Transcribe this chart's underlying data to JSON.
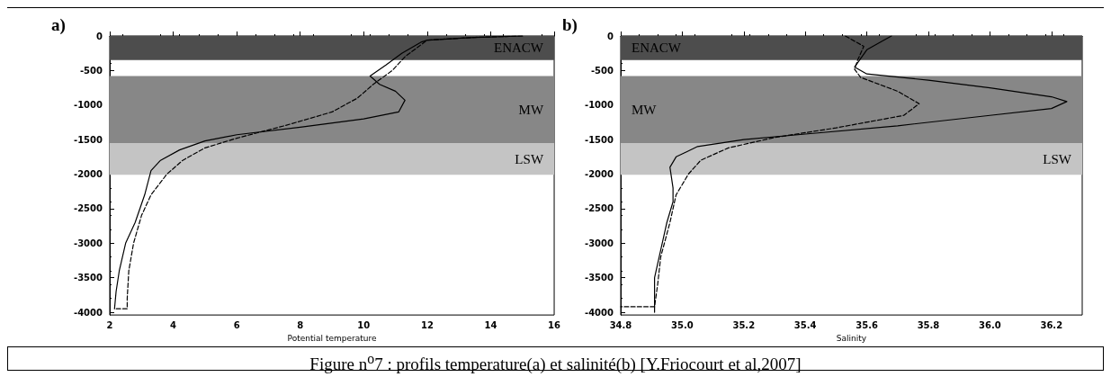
{
  "chart_data": [
    {
      "type": "line",
      "title": "a)",
      "xlabel": "Potential temperature",
      "xlim": [
        2,
        16
      ],
      "xticks": [
        2,
        4,
        6,
        8,
        10,
        12,
        14,
        16
      ],
      "ylim": [
        -4040,
        0
      ],
      "yticks": [
        -4000,
        -3500,
        -3000,
        -2500,
        -2000,
        -1500,
        -1000,
        -500,
        0
      ],
      "marker": "none",
      "bands": [
        {
          "axis": "y",
          "from": 0,
          "to": -350,
          "label": "ENACW",
          "color": "#4d4d4d"
        },
        {
          "axis": "y",
          "from": -580,
          "to": -1550,
          "label": "MW",
          "color": "#878787"
        },
        {
          "axis": "y",
          "from": -1550,
          "to": -2010,
          "label": "LSW",
          "color": "#c4c4c4"
        }
      ],
      "series": [
        {
          "color": "#000000",
          "line_style": "solid",
          "x": [
            15.0,
            13.5,
            12.0,
            11.8,
            11.2,
            10.7,
            10.2,
            10.5,
            11.0,
            11.3,
            11.1,
            10.0,
            8.0,
            6.0,
            5.0,
            4.2,
            3.6,
            3.3,
            3.1,
            2.8,
            2.5,
            2.3,
            2.2,
            2.15
          ],
          "values": [
            0,
            -20,
            -60,
            -90,
            -250,
            -420,
            -580,
            -700,
            -800,
            -930,
            -1100,
            -1200,
            -1320,
            -1430,
            -1520,
            -1650,
            -1800,
            -1950,
            -2300,
            -2700,
            -3000,
            -3400,
            -3700,
            -3950
          ]
        },
        {
          "color": "#000000",
          "line_style": "dashed",
          "x": [
            15.0,
            13.5,
            12.0,
            11.3,
            10.9,
            10.3,
            9.8,
            9.0,
            7.5,
            6.0,
            5.0,
            4.3,
            3.8,
            3.3,
            3.0,
            2.75,
            2.6,
            2.55,
            2.55,
            2.2
          ],
          "values": [
            0,
            -20,
            -60,
            -300,
            -500,
            -700,
            -900,
            -1100,
            -1300,
            -1480,
            -1620,
            -1800,
            -2000,
            -2300,
            -2600,
            -3000,
            -3400,
            -3800,
            -3950,
            -3950
          ]
        }
      ],
      "annotations": [
        "Figure n$^{o}$7 : profils temperature(a) et salinité(b) [Y.Friocourt et al,2007]"
      ]
    },
    {
      "type": "line",
      "title": "b)",
      "xlabel": "Salinity",
      "xlim": [
        34.8,
        36.3
      ],
      "xticks": [
        {
          "value": 34.8,
          "label": "34.8"
        },
        {
          "value": 35.0,
          "label": "35.0"
        },
        {
          "value": 35.2,
          "label": "35.2"
        },
        {
          "value": 35.4,
          "label": "35.4"
        },
        {
          "value": 35.6,
          "label": "35.6"
        },
        {
          "value": 35.8,
          "label": "35.8"
        },
        {
          "value": 36.0,
          "label": "36.0"
        },
        {
          "value": 36.2,
          "label": "36.2"
        }
      ],
      "ylim": [
        -4040,
        0
      ],
      "yticks": [
        -4000,
        -3500,
        -3000,
        -2500,
        -2000,
        -1500,
        -1000,
        -500,
        0
      ],
      "marker": "none",
      "bands": [
        {
          "axis": "y",
          "from": 0,
          "to": -350,
          "label": "ENACW",
          "color": "#4d4d4d"
        },
        {
          "axis": "y",
          "from": -580,
          "to": -1550,
          "label": "MW",
          "color": "#878787"
        },
        {
          "axis": "y",
          "from": -1550,
          "to": -2010,
          "label": "LSW",
          "color": "#c4c4c4"
        }
      ],
      "series": [
        {
          "color": "#000000",
          "line_style": "solid",
          "x": [
            35.68,
            35.66,
            35.6,
            35.56,
            35.6,
            35.8,
            36.0,
            36.2,
            36.25,
            36.2,
            36.0,
            35.7,
            35.4,
            35.2,
            35.05,
            34.98,
            34.96,
            34.97,
            34.97,
            34.95,
            34.93,
            34.91,
            34.91
          ],
          "values": [
            0,
            -50,
            -200,
            -450,
            -550,
            -640,
            -750,
            -880,
            -950,
            -1050,
            -1150,
            -1300,
            -1420,
            -1500,
            -1600,
            -1750,
            -1900,
            -2200,
            -2400,
            -2700,
            -3100,
            -3500,
            -4000
          ]
        },
        {
          "color": "#000000",
          "line_style": "dashed",
          "x": [
            35.53,
            35.59,
            35.57,
            35.56,
            35.58,
            35.7,
            35.77,
            35.72,
            35.5,
            35.3,
            35.15,
            35.06,
            35.02,
            34.98,
            34.96,
            34.93,
            34.92,
            34.91,
            34.8
          ],
          "values": [
            0,
            -150,
            -350,
            -480,
            -600,
            -800,
            -980,
            -1150,
            -1330,
            -1470,
            -1620,
            -1800,
            -2000,
            -2300,
            -2700,
            -3200,
            -3600,
            -3920,
            -3920
          ]
        }
      ]
    }
  ]
}
